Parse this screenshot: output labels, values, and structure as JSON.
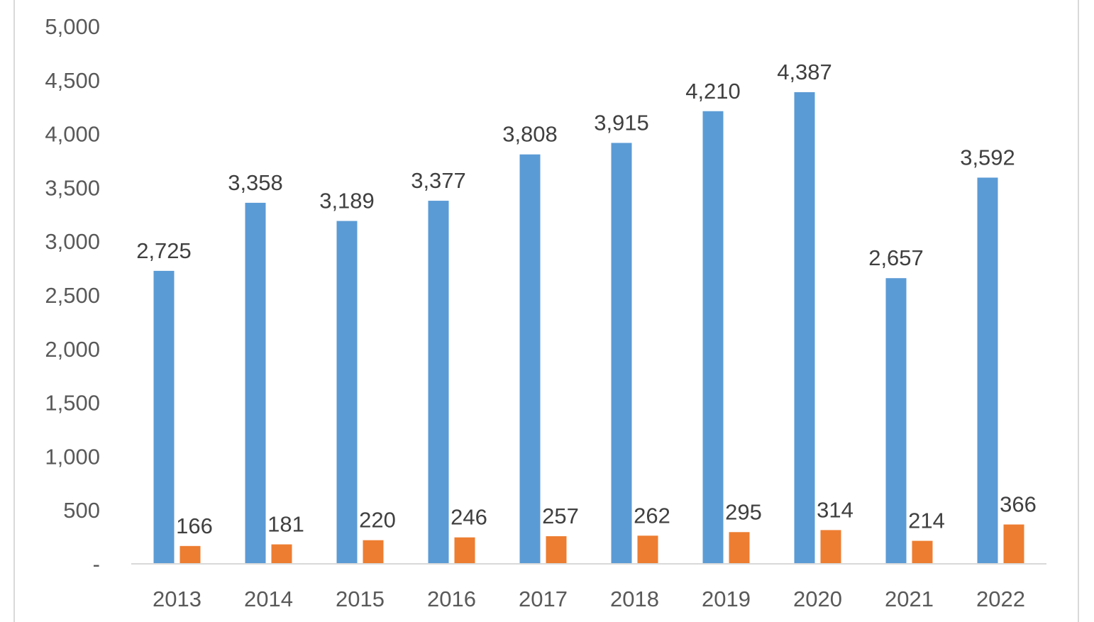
{
  "chart_data": {
    "type": "bar",
    "title": "",
    "xlabel": "",
    "ylabel": "",
    "categories": [
      "2013",
      "2014",
      "2015",
      "2016",
      "2017",
      "2018",
      "2019",
      "2020",
      "2021",
      "2022"
    ],
    "series": [
      {
        "color": "#5b9bd5",
        "values": [
          2725,
          3358,
          3189,
          3377,
          3808,
          3915,
          4210,
          4387,
          2657,
          3592
        ],
        "labels": [
          "2,725",
          "3,358",
          "3,189",
          "3,377",
          "3,808",
          "3,915",
          "4,210",
          "4,387",
          "2,657",
          "3,592"
        ]
      },
      {
        "color": "#ed7d31",
        "values": [
          166,
          181,
          220,
          246,
          257,
          262,
          295,
          314,
          214,
          366
        ],
        "labels": [
          "166",
          "181",
          "220",
          "246",
          "257",
          "262",
          "295",
          "314",
          "214",
          "366"
        ]
      }
    ],
    "ylim": [
      0,
      5000
    ],
    "yticks": [
      0,
      500,
      1000,
      1500,
      2000,
      2500,
      3000,
      3500,
      4000,
      4500,
      5000
    ],
    "ytick_labels": [
      "-",
      "500",
      "1,000",
      "1,500",
      "2,000",
      "2,500",
      "3,000",
      "3,500",
      "4,000",
      "4,500",
      "5,000"
    ],
    "grid": false,
    "legend": "none"
  }
}
